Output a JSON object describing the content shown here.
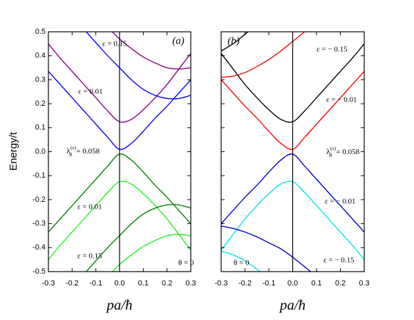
{
  "y_label": "Energy/t",
  "chart_data": [
    {
      "type": "line",
      "panel_label": "(a)",
      "x_label": "pa/ħ",
      "x": [
        -0.3,
        -0.25,
        -0.2,
        -0.15,
        -0.1,
        -0.05,
        0,
        0.05,
        0.1,
        0.15,
        0.2,
        0.25,
        0.3
      ],
      "xlim": [
        -0.3,
        0.3
      ],
      "ylim": [
        -0.5,
        0.5
      ],
      "xticks": [
        -0.3,
        -0.2,
        -0.1,
        {
          "value": 0,
          "label": "0.0"
        },
        0.1,
        0.2,
        0.3
      ],
      "yticks": [
        -0.5,
        -0.4,
        -0.3,
        -0.2,
        -0.1,
        {
          "value": 0,
          "label": "0.0"
        },
        0.1,
        0.2,
        0.3,
        0.4,
        0.5
      ],
      "series": [
        {
          "color": "#0000ff",
          "values": [
            0.335,
            0.28,
            0.225,
            0.17,
            0.115,
            0.06,
            0.01,
            0.035,
            0.085,
            0.14,
            0.19,
            0.245,
            0.3
          ]
        },
        {
          "color": "#800080",
          "values": [
            0.45,
            0.39,
            0.335,
            0.28,
            0.225,
            0.17,
            0.125,
            0.135,
            0.175,
            0.225,
            0.28,
            0.345,
            0.41
          ]
        },
        {
          "color": "#0000ff",
          "values": [
            null,
            null,
            null,
            0.51,
            0.455,
            0.4,
            0.35,
            0.3,
            0.26,
            0.235,
            0.222,
            0.222,
            0.235
          ]
        },
        {
          "color": "#800080",
          "values": [
            null,
            null,
            null,
            null,
            null,
            0.52,
            0.47,
            0.43,
            0.395,
            0.37,
            0.35,
            0.345,
            0.35
          ]
        },
        {
          "color": "#008000",
          "values": [
            -0.335,
            -0.28,
            -0.225,
            -0.17,
            -0.115,
            -0.06,
            -0.01,
            -0.035,
            -0.085,
            -0.14,
            -0.19,
            -0.245,
            -0.3
          ]
        },
        {
          "color": "#22ee22",
          "values": [
            -0.45,
            -0.39,
            -0.335,
            -0.28,
            -0.225,
            -0.17,
            -0.125,
            -0.135,
            -0.175,
            -0.225,
            -0.28,
            -0.345,
            -0.41
          ]
        },
        {
          "color": "#008000",
          "values": [
            null,
            null,
            null,
            -0.51,
            -0.455,
            -0.4,
            -0.35,
            -0.3,
            -0.26,
            -0.235,
            -0.222,
            -0.222,
            -0.235
          ]
        },
        {
          "color": "#22ee22",
          "values": [
            null,
            null,
            null,
            null,
            null,
            -0.52,
            -0.47,
            -0.43,
            -0.395,
            -0.37,
            -0.35,
            -0.345,
            -0.35
          ]
        }
      ],
      "annotations": [
        "ε = 0.15",
        "ε = 0.01",
        {
          "symbol": "λ",
          "subscript": "R",
          "superscript": "(o)",
          "text": " = 0.058"
        },
        "ε = 0.01",
        "ε = 0.15",
        "θ = 0"
      ]
    },
    {
      "type": "line",
      "panel_label": "(b)",
      "x_label": "pa/ħ",
      "x": [
        -0.3,
        -0.25,
        -0.2,
        -0.15,
        -0.1,
        -0.05,
        0,
        0.05,
        0.1,
        0.15,
        0.2,
        0.25,
        0.3
      ],
      "xlim": [
        -0.3,
        0.3
      ],
      "ylim": [
        -0.5,
        0.5
      ],
      "xticks": [
        -0.3,
        -0.2,
        -0.1,
        {
          "value": 0,
          "label": "0.0"
        },
        0.1,
        0.2,
        0.3
      ],
      "yticks": [
        -0.5,
        -0.4,
        -0.3,
        -0.2,
        -0.1,
        0,
        0.1,
        0.2,
        0.3,
        0.4,
        0.5
      ],
      "series": [
        {
          "color": "#000000",
          "values": [
            0.41,
            0.345,
            0.28,
            0.225,
            0.175,
            0.135,
            0.125,
            0.17,
            0.225,
            0.28,
            0.335,
            0.39,
            0.45
          ]
        },
        {
          "color": "#ff0000",
          "values": [
            0.3,
            0.245,
            0.19,
            0.14,
            0.085,
            0.035,
            0.01,
            0.06,
            0.115,
            0.17,
            0.225,
            0.28,
            0.335
          ]
        },
        {
          "color": "#ff0000",
          "values": [
            0.31,
            0.315,
            0.33,
            0.355,
            0.385,
            0.42,
            0.46,
            0.5,
            null,
            null,
            null,
            null,
            null
          ]
        },
        {
          "color": "#000000",
          "values": [
            0.42,
            0.45,
            0.49,
            0.53,
            null,
            null,
            null,
            null,
            null,
            null,
            null,
            null,
            null
          ]
        },
        {
          "color": "#0000cc",
          "values": [
            -0.3,
            -0.245,
            -0.19,
            -0.14,
            -0.085,
            -0.035,
            -0.01,
            -0.06,
            -0.115,
            -0.17,
            -0.225,
            -0.28,
            -0.335
          ]
        },
        {
          "color": "#00e5e5",
          "values": [
            -0.41,
            -0.345,
            -0.28,
            -0.225,
            -0.175,
            -0.135,
            -0.125,
            -0.17,
            -0.225,
            -0.28,
            -0.335,
            -0.39,
            -0.45
          ]
        },
        {
          "color": "#0000cc",
          "values": [
            -0.31,
            -0.32,
            -0.335,
            -0.355,
            -0.38,
            -0.405,
            -0.44,
            -0.48,
            -0.52,
            null,
            null,
            null,
            null
          ]
        },
        {
          "color": "#00e5e5",
          "values": [
            -0.415,
            -0.43,
            -0.455,
            -0.49,
            -0.53,
            null,
            null,
            null,
            null,
            null,
            null,
            null,
            null
          ]
        }
      ],
      "annotations": [
        "ε = − 0.15",
        "ε = − 0.01",
        {
          "symbol": "λ",
          "subscript": "R",
          "superscript": "(o)",
          "text": " = 0.058"
        },
        "ε = − 0.01",
        "ε = − 0.15",
        "θ = 0"
      ]
    }
  ]
}
